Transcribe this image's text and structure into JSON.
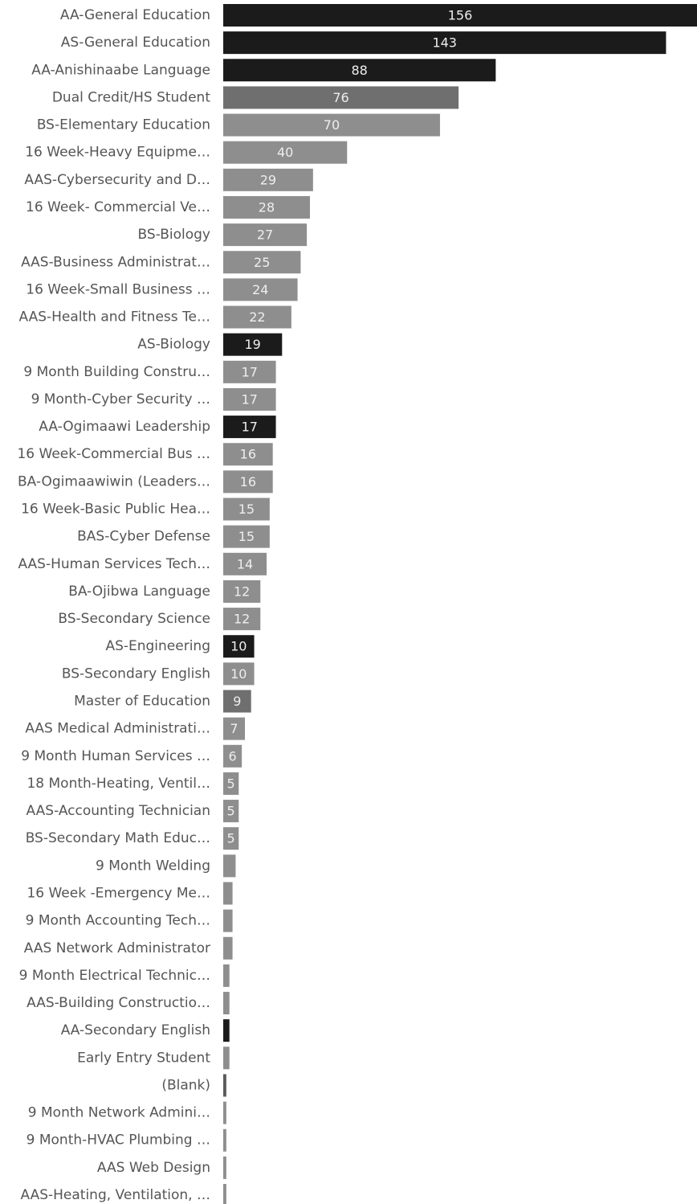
{
  "chart_data": {
    "type": "hbar",
    "categories": [
      "AA-General Education",
      "AS-General Education",
      "AA-Anishinaabe Language",
      "Dual Credit/HS Student",
      "BS-Elementary Education",
      "16 Week-Heavy Equipme…",
      "AAS-Cybersecurity and D…",
      "16 Week- Commercial Ve…",
      "BS-Biology",
      "AAS-Business Administrat…",
      "16 Week-Small Business …",
      "AAS-Health and Fitness Te…",
      "AS-Biology",
      "9 Month Building Constru…",
      "9 Month-Cyber Security …",
      "AA-Ogimaawi Leadership",
      "16 Week-Commercial Bus …",
      "BA-Ogimaawiwin (Leaders…",
      "16 Week-Basic Public Hea…",
      "BAS-Cyber Defense",
      "AAS-Human Services Tech…",
      "BA-Ojibwa Language",
      "BS-Secondary Science",
      "AS-Engineering",
      "BS-Secondary English",
      "Master of Education",
      "AAS Medical Administrati…",
      "9 Month Human Services …",
      "18 Month-Heating, Ventil…",
      "AAS-Accounting Technician",
      "BS-Secondary Math Educ…",
      "9 Month Welding",
      "16 Week -Emergency Me…",
      "9 Month Accounting Tech…",
      "AAS Network Administrator",
      "9 Month Electrical Technic…",
      "AAS-Building Constructio…",
      "AA-Secondary English",
      "Early Entry Student",
      "(Blank)",
      "9 Month Network Admini…",
      "9 Month-HVAC Plumbing …",
      "AAS Web Design",
      "AAS-Heating, Ventilation, …"
    ],
    "values": [
      156,
      143,
      88,
      76,
      70,
      40,
      29,
      28,
      27,
      25,
      24,
      22,
      19,
      17,
      17,
      17,
      16,
      16,
      15,
      15,
      14,
      12,
      12,
      10,
      10,
      9,
      7,
      6,
      5,
      5,
      5,
      4,
      3,
      3,
      3,
      2,
      2,
      2,
      2,
      1,
      1,
      1,
      1,
      1
    ],
    "value_labels": [
      "156",
      "143",
      "88",
      "76",
      "70",
      "40",
      "29",
      "28",
      "27",
      "25",
      "24",
      "22",
      "19",
      "17",
      "17",
      "17",
      "16",
      "16",
      "15",
      "15",
      "14",
      "12",
      "12",
      "10",
      "10",
      "9",
      "7",
      "6",
      "5",
      "5",
      "5",
      null,
      null,
      null,
      null,
      null,
      null,
      null,
      null,
      null,
      null,
      null,
      null,
      null
    ],
    "colors": [
      "#1b1b1b",
      "#1b1b1b",
      "#1b1b1b",
      "#6f6f6f",
      "#8e8e8e",
      "#8e8e8e",
      "#8e8e8e",
      "#8e8e8e",
      "#8e8e8e",
      "#8e8e8e",
      "#8e8e8e",
      "#8e8e8e",
      "#1b1b1b",
      "#8e8e8e",
      "#8e8e8e",
      "#1b1b1b",
      "#8e8e8e",
      "#8e8e8e",
      "#8e8e8e",
      "#8e8e8e",
      "#8e8e8e",
      "#8e8e8e",
      "#8e8e8e",
      "#1b1b1b",
      "#8e8e8e",
      "#6f6f6f",
      "#8e8e8e",
      "#8e8e8e",
      "#8e8e8e",
      "#8e8e8e",
      "#8e8e8e",
      "#8e8e8e",
      "#8e8e8e",
      "#8e8e8e",
      "#8e8e8e",
      "#8e8e8e",
      "#8e8e8e",
      "#1b1b1b",
      "#8e8e8e",
      "#5a5a5a",
      "#8e8e8e",
      "#8e8e8e",
      "#8e8e8e",
      "#8e8e8e"
    ],
    "xlim": [
      0,
      153
    ]
  }
}
